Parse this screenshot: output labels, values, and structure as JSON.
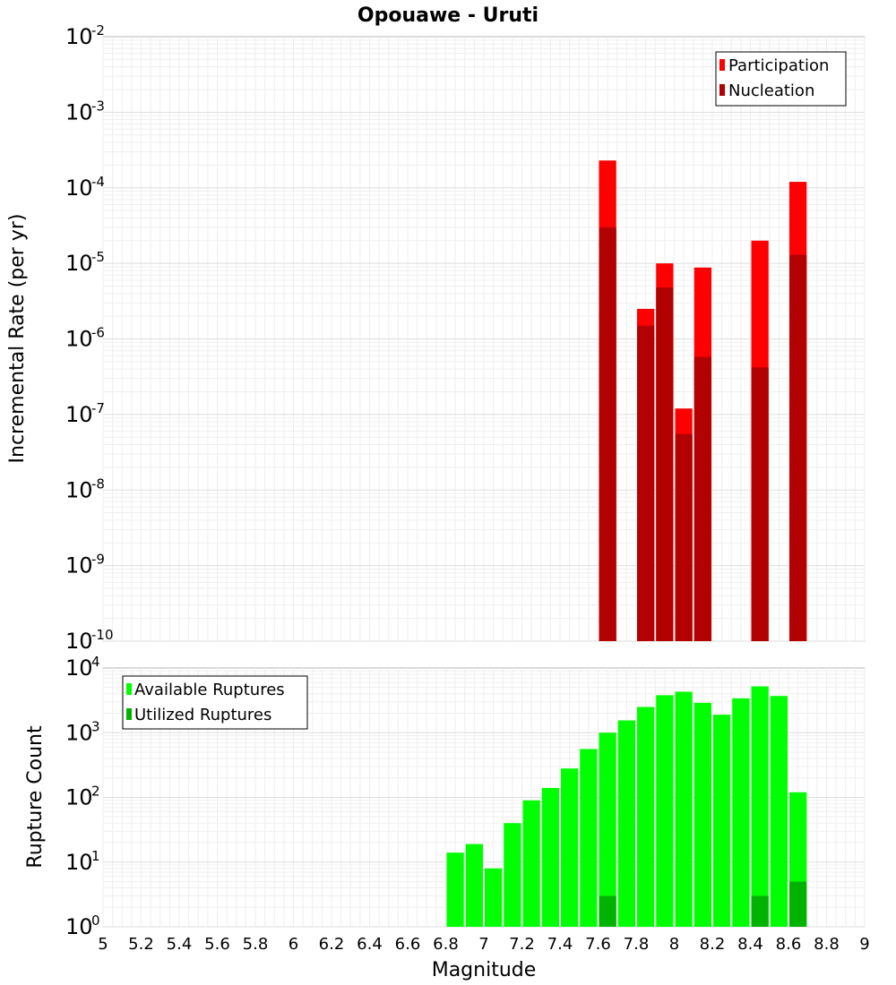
{
  "chart_data": [
    {
      "type": "bar",
      "title": "Opouawe - Uruti",
      "ylabel": "Incremental Rate (per yr)",
      "xlim": [
        5,
        9
      ],
      "ylim": [
        1e-10,
        0.01
      ],
      "yscale": "log",
      "grid": true,
      "legend_position": "top-right",
      "ytick_base": "10",
      "ytick_exponents": [
        "-2",
        "-3",
        "-4",
        "-5",
        "-6",
        "-7",
        "-8",
        "-9",
        "-10"
      ],
      "bin_width": 0.1,
      "series": [
        {
          "name": "Participation",
          "color": "#ff0000",
          "x": [
            7.65,
            7.85,
            7.95,
            8.05,
            8.15,
            8.45,
            8.65
          ],
          "values": [
            0.00023,
            2.5e-06,
            1e-05,
            1.2e-07,
            8.8e-06,
            2e-05,
            0.00012
          ]
        },
        {
          "name": "Nucleation",
          "color": "#b30000",
          "x": [
            7.65,
            7.85,
            7.95,
            8.05,
            8.15,
            8.45,
            8.65
          ],
          "values": [
            3e-05,
            1.5e-06,
            4.8e-06,
            5.5e-08,
            5.8e-07,
            4.2e-07,
            1.3e-05
          ]
        }
      ]
    },
    {
      "type": "bar",
      "ylabel": "Rupture Count",
      "xlabel": "Magnitude",
      "xlim": [
        5,
        9
      ],
      "ylim": [
        1,
        10000
      ],
      "yscale": "log",
      "grid": true,
      "legend_position": "top-left",
      "ytick_base": "10",
      "ytick_exponents": [
        "4",
        "3",
        "2",
        "1",
        "0"
      ],
      "xticks": [
        "5",
        "5.2",
        "5.4",
        "5.6",
        "5.8",
        "6",
        "6.2",
        "6.4",
        "6.6",
        "6.8",
        "7",
        "7.2",
        "7.4",
        "7.6",
        "7.8",
        "8",
        "8.2",
        "8.4",
        "8.6",
        "8.8",
        "9"
      ],
      "bin_width": 0.1,
      "series": [
        {
          "name": "Available Ruptures",
          "color": "#00ff00",
          "x": [
            6.85,
            6.95,
            7.05,
            7.15,
            7.25,
            7.35,
            7.45,
            7.55,
            7.65,
            7.75,
            7.85,
            7.95,
            8.05,
            8.15,
            8.25,
            8.35,
            8.45,
            8.55,
            8.65
          ],
          "values": [
            14,
            19,
            8,
            40,
            90,
            140,
            280,
            560,
            1000,
            1550,
            2500,
            3800,
            4300,
            2900,
            1900,
            3400,
            5200,
            3700,
            120
          ]
        },
        {
          "name": "Utilized Ruptures",
          "color": "#00b300",
          "x": [
            7.65,
            7.85,
            7.95,
            8.05,
            8.15,
            8.45,
            8.65
          ],
          "values": [
            3,
            1,
            1,
            1,
            1,
            3,
            5
          ]
        }
      ]
    }
  ]
}
